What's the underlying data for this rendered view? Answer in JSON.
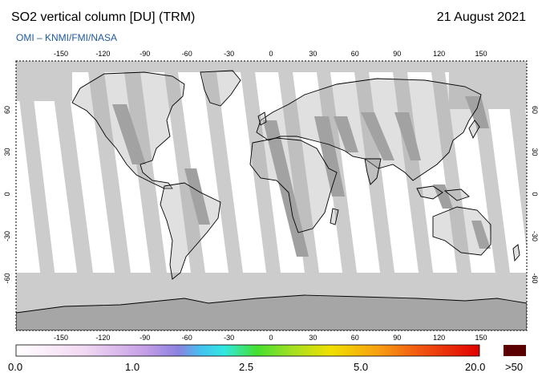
{
  "header": {
    "title": "SO2 vertical column [DU] (TRM)",
    "date": "21 August 2021",
    "credit": "OMI  –  KNMI/FMI/NASA"
  },
  "map": {
    "lon_ticks": [
      "-150",
      "-120",
      "-90",
      "-60",
      "-30",
      "0",
      "30",
      "60",
      "90",
      "120",
      "150"
    ],
    "lat_ticks": [
      "60",
      "30",
      "0",
      "-30",
      "-60"
    ],
    "colors": {
      "background": "#ffffff",
      "no_data": "#cccccc",
      "land": "#a6a6a6",
      "swath_dark": "#9f9f9f",
      "coast": "#000000"
    }
  },
  "colorbar": {
    "labels": [
      "0.0",
      "1.0",
      "2.5",
      "5.0",
      "20.0",
      ">50"
    ],
    "over_color": "#5a0000"
  }
}
